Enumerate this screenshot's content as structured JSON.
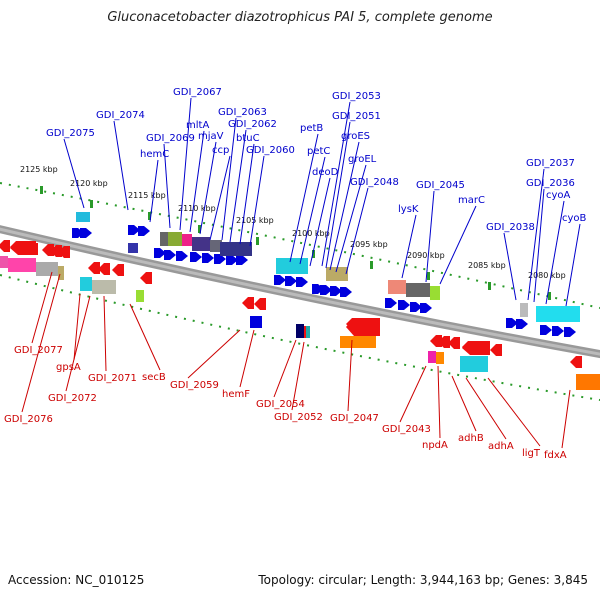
{
  "title": "Gluconacetobacter diazotrophicus PAI 5, complete genome",
  "footer": {
    "accession": "Accession: NC_010125",
    "summary": "Topology: circular; Length: 3,944,163 bp; Genes: 3,845"
  },
  "colors": {
    "forward": "#0000dd",
    "reverse": "#ee1111",
    "backbone": "#888888",
    "ring": "#228822"
  },
  "ticks": [
    "2125 kbp",
    "2120 kbp",
    "2115 kbp",
    "2110 kbp",
    "2105 kbp",
    "2100 kbp",
    "2095 kbp",
    "2090 kbp",
    "2085 kbp",
    "2080 kbp"
  ],
  "forward_genes": [
    "GDI_2075",
    "GDI_2074",
    "hemC",
    "GDI_2069",
    "GDI_2067",
    "mltA",
    "mjaV",
    "ccp",
    "GDI_2063",
    "GDI_2062",
    "btuC",
    "GDI_2060",
    "petB",
    "petC",
    "deoD",
    "GDI_2053",
    "GDI_2051",
    "groES",
    "groEL",
    "GDI_2048",
    "lysK",
    "GDI_2045",
    "marC",
    "GDI_2038",
    "GDI_2037",
    "GDI_2036",
    "cyoA",
    "cyoB"
  ],
  "reverse_genes": [
    "GDI_2077",
    "GDI_2076",
    "gpsA",
    "GDI_2072",
    "GDI_2071",
    "secB",
    "GDI_2059",
    "hemF",
    "GDI_2054",
    "GDI_2052",
    "GDI_2047",
    "GDI_2043",
    "npdA",
    "adhB",
    "adhA",
    "ligT",
    "fdxA"
  ]
}
